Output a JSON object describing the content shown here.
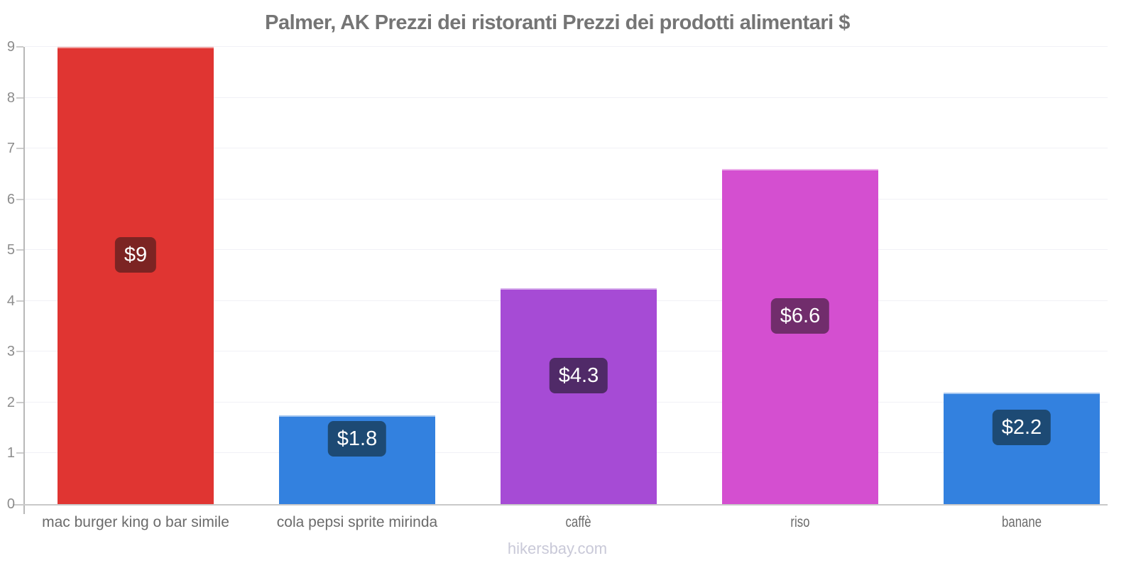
{
  "title": "Palmer, AK Prezzi dei ristoranti Prezzi dei prodotti alimentari $",
  "watermark": "hikersbay.com",
  "chart_data": {
    "type": "bar",
    "title": "Palmer, AK Prezzi dei ristoranti Prezzi dei prodotti alimentari $",
    "categories": [
      "mac burger king o bar simile",
      "cola pepsi sprite mirinda",
      "caffè",
      "riso",
      "banane"
    ],
    "values": [
      9,
      1.75,
      4.25,
      6.6,
      2.2
    ],
    "value_labels": [
      "$9",
      "$1.8",
      "$4.3",
      "$6.6",
      "$2.2"
    ],
    "bar_colors": [
      "#e03532",
      "#3381df",
      "#a64bd5",
      "#d44fd0",
      "#3381df"
    ],
    "value_label_bg": [
      "#7c2423",
      "#1d4a74",
      "#502a68",
      "#712d6c",
      "#1d4a74"
    ],
    "condensed_labels": [
      false,
      false,
      true,
      true,
      true
    ],
    "xlabel": "",
    "ylabel": "",
    "ylim": [
      0,
      9
    ],
    "yticks": [
      0,
      1,
      2,
      3,
      4,
      5,
      6,
      7,
      8,
      9
    ],
    "grid": true,
    "legend_position": "none"
  },
  "colors": {
    "title": "#757575",
    "axis": "#b8b8b8",
    "tick_label": "#8c8c8c",
    "category_label": "#6b6b6b",
    "gridline": "#f1f1f6",
    "value_label_text": "#ffffff",
    "watermark": "#c9c9d8"
  }
}
